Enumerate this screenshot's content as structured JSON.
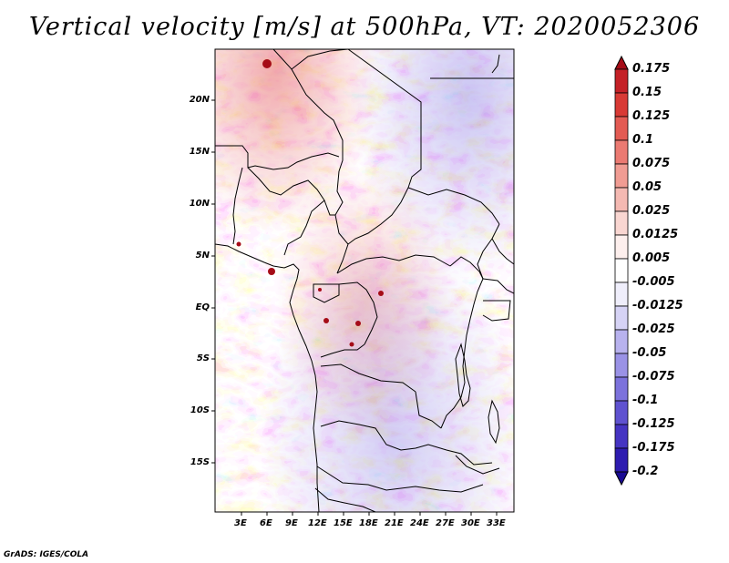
{
  "title": "Vertical velocity [m/s] at 500hPa, VT: 2020052306",
  "map": {
    "region": "Central Africa",
    "variable": "Vertical velocity",
    "units": "m/s",
    "level": "500hPa",
    "valid_time": "2020052306",
    "lat_labels": [
      "20N",
      "15N",
      "10N",
      "5N",
      "EQ",
      "5S",
      "10S",
      "15S"
    ],
    "lon_labels": [
      "3E",
      "6E",
      "9E",
      "12E",
      "15E",
      "18E",
      "21E",
      "24E",
      "27E",
      "30E",
      "33E"
    ]
  },
  "colorbar": {
    "labels": [
      "0.175",
      "0.15",
      "0.125",
      "0.1",
      "0.075",
      "0.05",
      "0.025",
      "0.0125",
      "0.005",
      "-0.005",
      "-0.0125",
      "-0.025",
      "-0.05",
      "-0.075",
      "-0.1",
      "-0.125",
      "-0.175",
      "-0.2"
    ],
    "colors": [
      "#a50c17",
      "#c42127",
      "#d83a35",
      "#e35b53",
      "#eb7a72",
      "#f09c93",
      "#f4b9b2",
      "#f9d6d1",
      "#fdefed",
      "#ffffff",
      "#efeefb",
      "#d6d3f5",
      "#b8b2ee",
      "#9a92e6",
      "#7c72dc",
      "#5f52d0",
      "#4534c2",
      "#2e1cb0",
      "#1a0b93"
    ]
  },
  "credit": "GrADS: IGES/COLA"
}
